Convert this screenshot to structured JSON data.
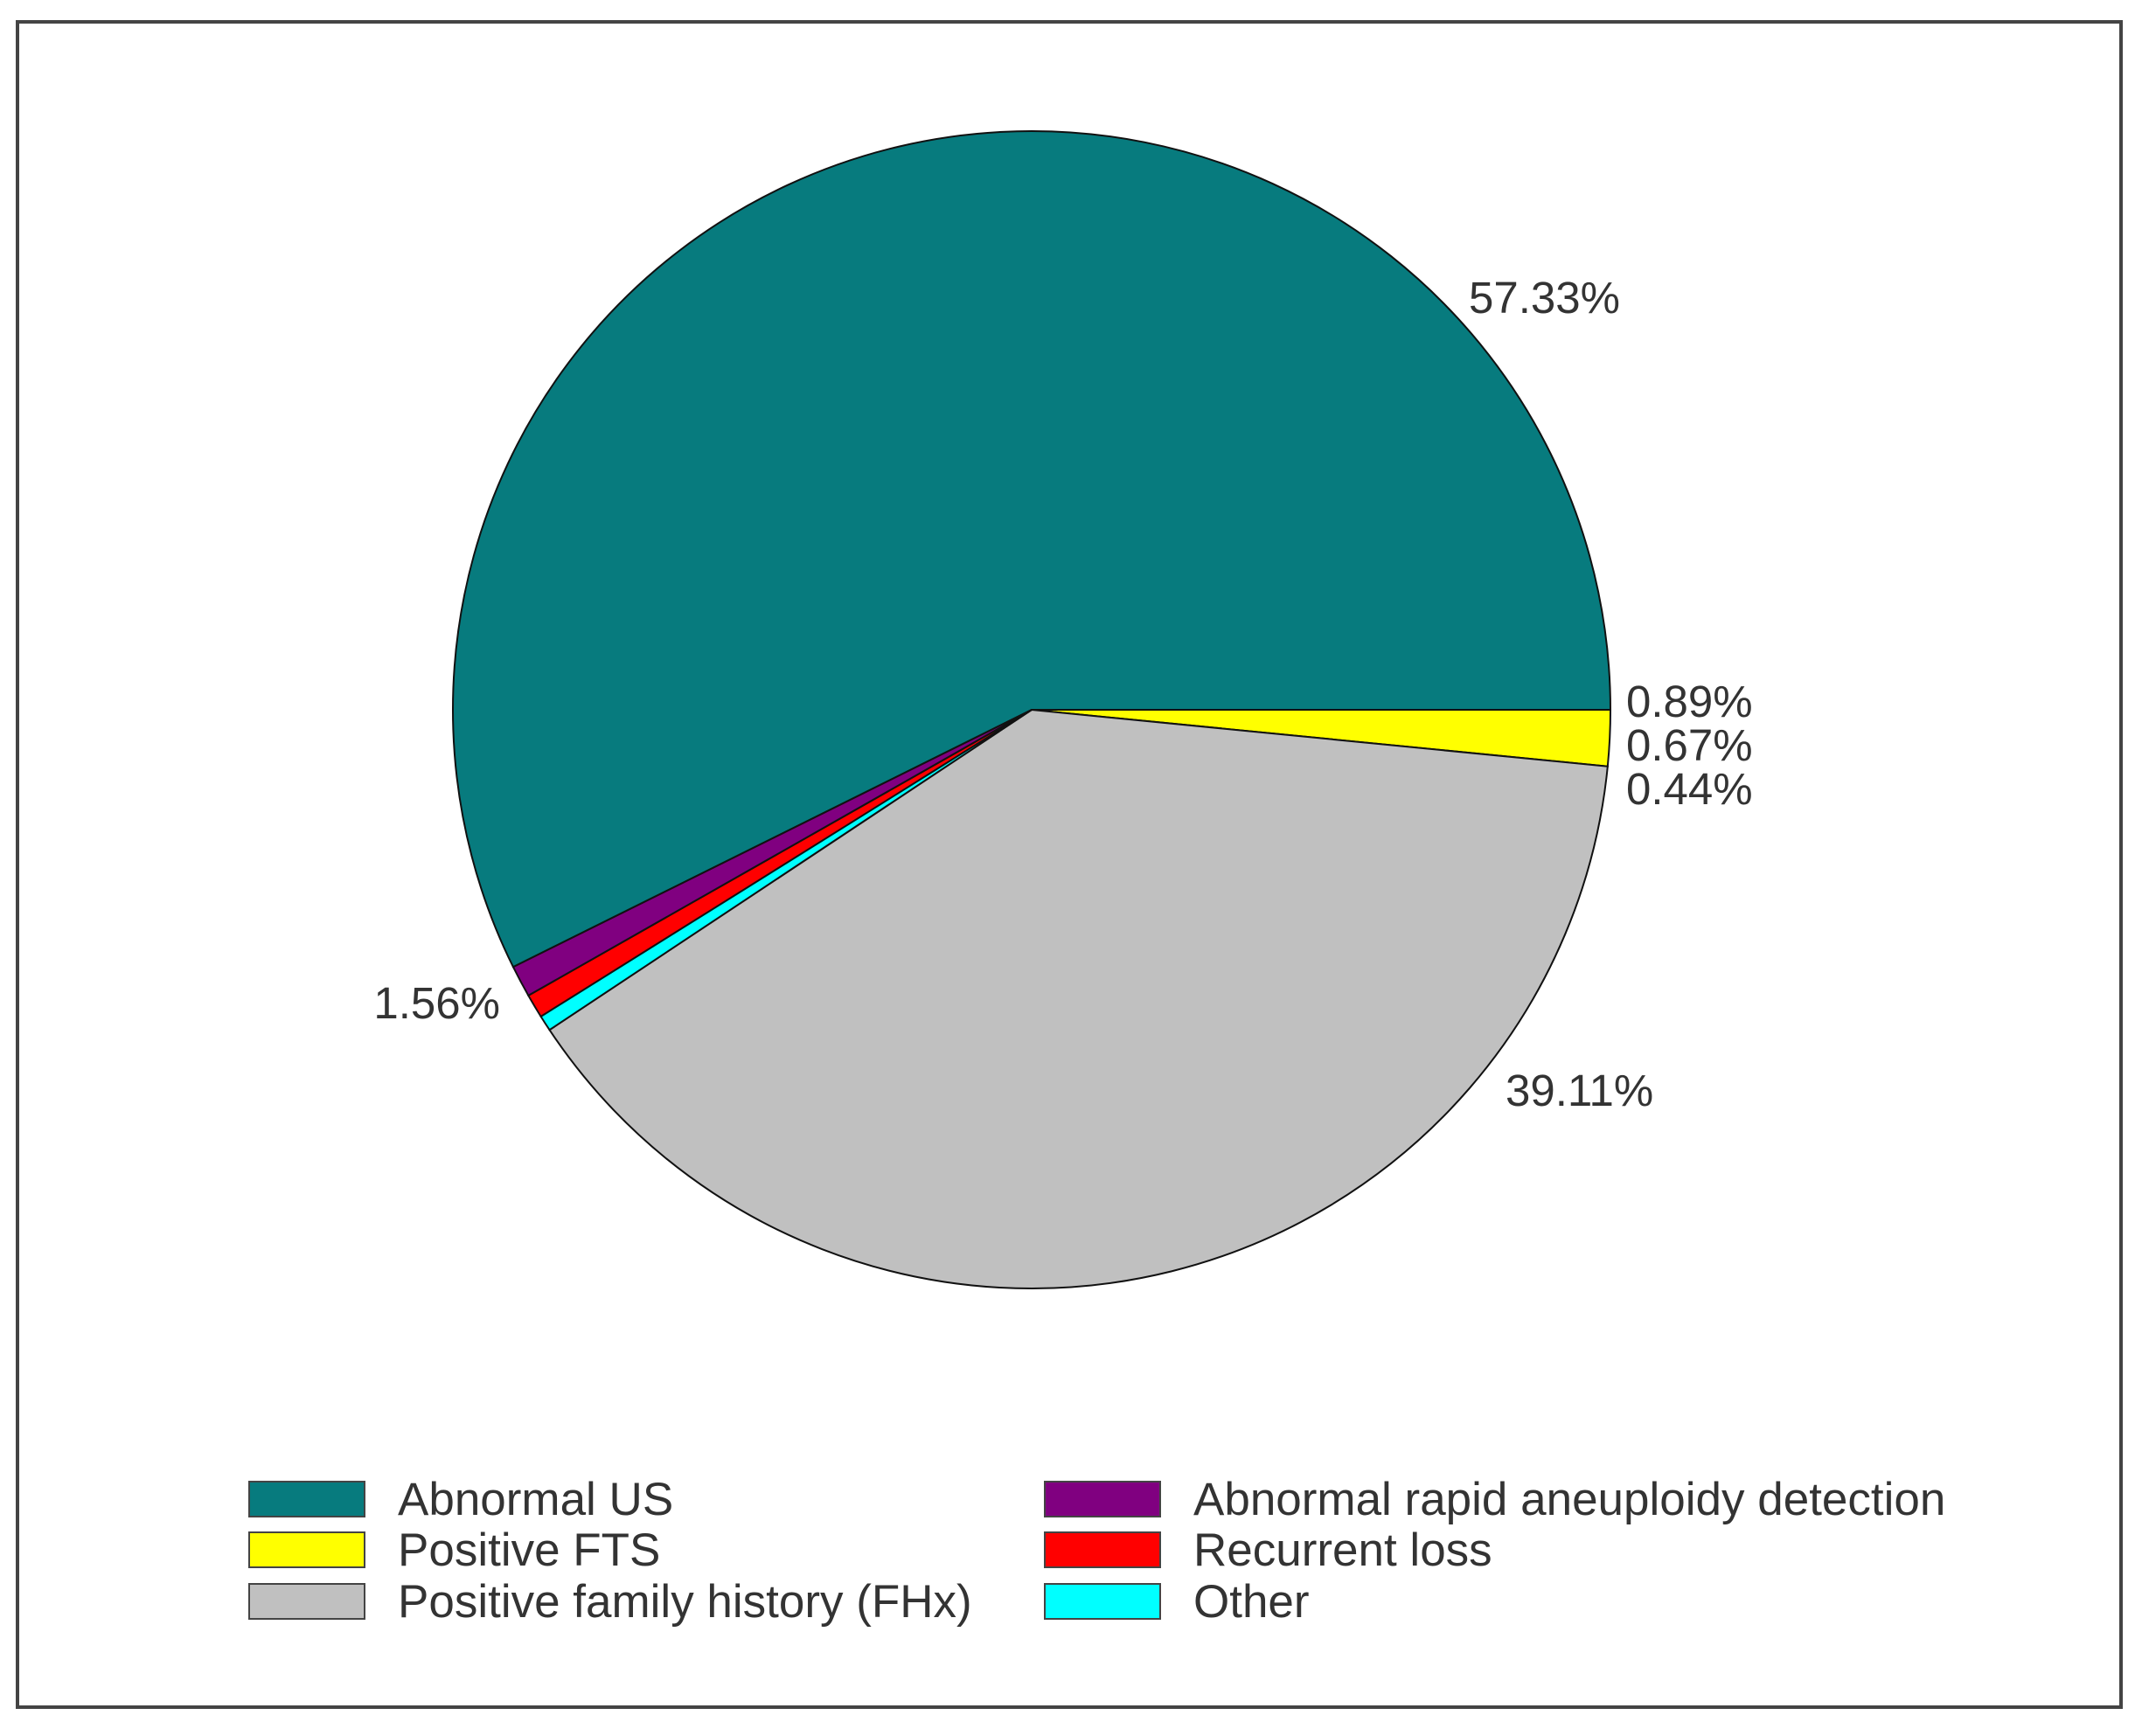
{
  "chart_data": {
    "type": "pie",
    "categories": [
      "Abnormal US",
      "Positive FTS",
      "Positive family history (FHx)",
      "Other",
      "Recurrent loss",
      "Abnormal rapid aneuploidy detection"
    ],
    "values": [
      57.33,
      1.56,
      39.11,
      0.44,
      0.67,
      0.89
    ],
    "data_labels": [
      "57.33%",
      "1.56%",
      "39.11%",
      "0.44%",
      "0.67%",
      "0.89%"
    ],
    "colors": [
      "#077b7e",
      "#ffff00",
      "#c0c0c0",
      "#00ffff",
      "#ff0000",
      "#800080"
    ],
    "title": "",
    "legend": {
      "placement": "bottom",
      "items": [
        {
          "label": "Abnormal US",
          "color": "#077b7e"
        },
        {
          "label": "Positive FTS",
          "color": "#ffff00"
        },
        {
          "label": "Positive family history (FHx)",
          "color": "#c0c0c0"
        },
        {
          "label": "Abnormal rapid aneuploidy detection",
          "color": "#800080"
        },
        {
          "label": "Recurrent loss",
          "color": "#ff0000"
        },
        {
          "label": "Other",
          "color": "#00ffff"
        }
      ]
    }
  }
}
